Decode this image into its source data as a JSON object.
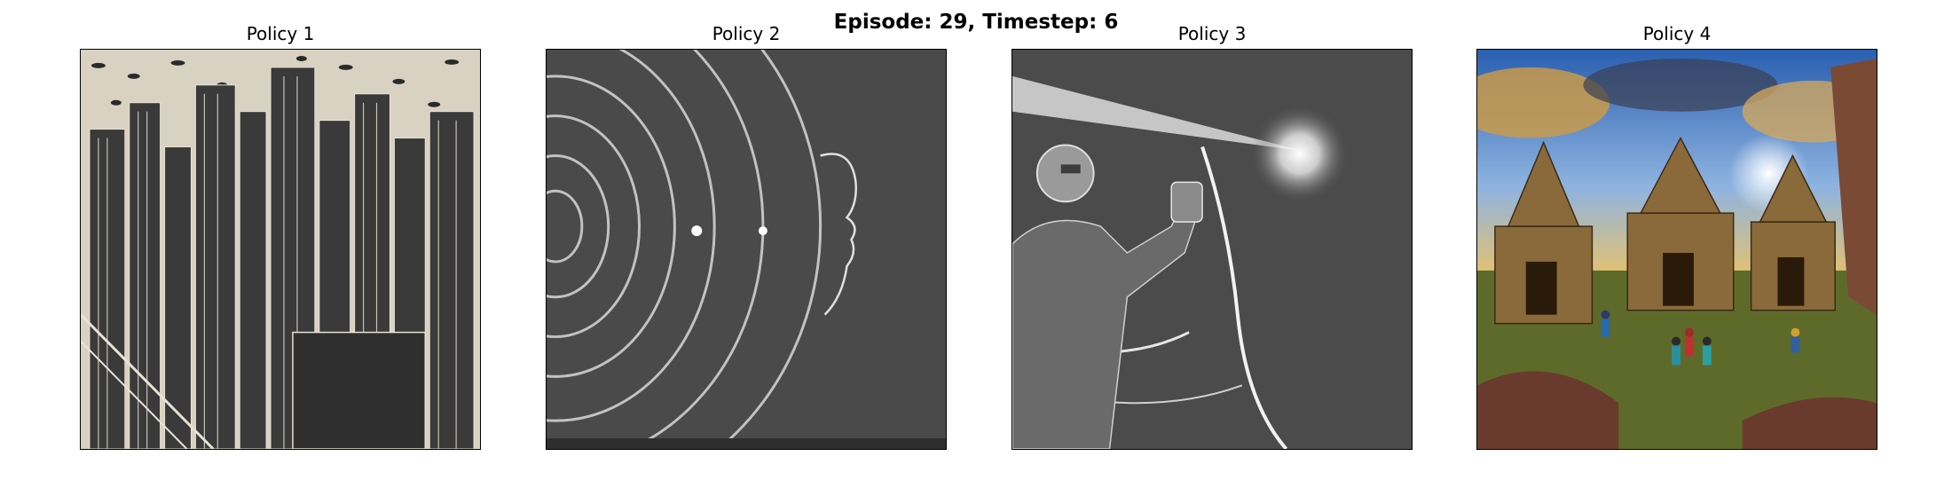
{
  "figure": {
    "title": "Episode: 29, Timestep: 6"
  },
  "panels": [
    {
      "title": "Policy 1",
      "image": "etched-city-skyline-illustration"
    },
    {
      "title": "Policy 2",
      "image": "concentric-light-rings-with-face-profile"
    },
    {
      "title": "Policy 3",
      "image": "robot-holding-light-beam"
    },
    {
      "title": "Policy 4",
      "image": "temple-ruins-with-travelers"
    }
  ]
}
